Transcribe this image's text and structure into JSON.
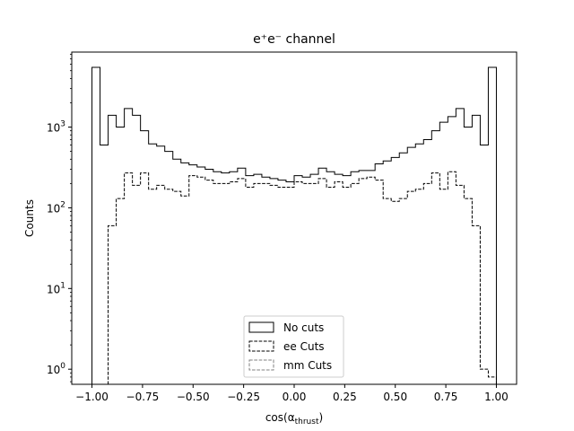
{
  "chart_data": {
    "type": "step-histogram",
    "title": "e⁺e⁻ channel",
    "xlabel": "cos(α",
    "xlabel_sub": "thrust",
    "xlabel_close": ")",
    "ylabel": "Counts",
    "xlim": [
      -1.1,
      1.1
    ],
    "ylim": [
      0.65,
      8500
    ],
    "yscale": "log",
    "x_ticks": [
      -1.0,
      -0.75,
      -0.5,
      -0.25,
      0.0,
      0.25,
      0.5,
      0.75,
      1.0
    ],
    "x_tick_labels": [
      "−1.00",
      "−0.75",
      "−0.50",
      "−0.25",
      "0.00",
      "0.25",
      "0.50",
      "0.75",
      "1.00"
    ],
    "y_ticks": [
      1,
      10,
      100,
      1000
    ],
    "y_tick_base": "10",
    "y_tick_exponents": [
      "0",
      "1",
      "2",
      "3"
    ],
    "legend_position": "lower center",
    "grid": false,
    "bin_edges": [
      -1.0,
      -0.96,
      -0.92,
      -0.88,
      -0.84,
      -0.8,
      -0.76,
      -0.72,
      -0.68,
      -0.64,
      -0.6,
      -0.56,
      -0.52,
      -0.48,
      -0.44,
      -0.4,
      -0.36,
      -0.32,
      -0.28,
      -0.24,
      -0.2,
      -0.16,
      -0.12,
      -0.08,
      -0.04,
      0.0,
      0.04,
      0.08,
      0.12,
      0.16,
      0.2,
      0.24,
      0.28,
      0.32,
      0.36,
      0.4,
      0.44,
      0.48,
      0.52,
      0.56,
      0.6,
      0.64,
      0.68,
      0.72,
      0.76,
      0.8,
      0.84,
      0.88,
      0.92,
      0.96,
      1.0
    ],
    "series": [
      {
        "name": "No cuts",
        "style": "solid",
        "color": "#000000",
        "values": [
          5500,
          600,
          1400,
          1000,
          1700,
          1400,
          900,
          620,
          580,
          500,
          400,
          360,
          340,
          320,
          300,
          280,
          270,
          280,
          310,
          250,
          260,
          240,
          230,
          220,
          210,
          250,
          240,
          260,
          310,
          280,
          260,
          250,
          280,
          290,
          290,
          350,
          380,
          420,
          480,
          560,
          620,
          700,
          900,
          1150,
          1350,
          1700,
          1000,
          1400,
          600,
          5500
        ]
      },
      {
        "name": "ee Cuts",
        "style": "dashed",
        "color": "#000000",
        "values": [
          0.0,
          0.0,
          60,
          130,
          270,
          190,
          270,
          170,
          190,
          170,
          160,
          140,
          250,
          240,
          220,
          200,
          200,
          210,
          230,
          180,
          200,
          200,
          190,
          180,
          180,
          210,
          200,
          200,
          230,
          180,
          210,
          180,
          200,
          230,
          240,
          220,
          130,
          120,
          130,
          160,
          170,
          200,
          270,
          170,
          280,
          190,
          130,
          60,
          1.0,
          0.8
        ]
      },
      {
        "name": "mm Cuts",
        "style": "dashed",
        "color": "#808080",
        "values": []
      }
    ]
  }
}
